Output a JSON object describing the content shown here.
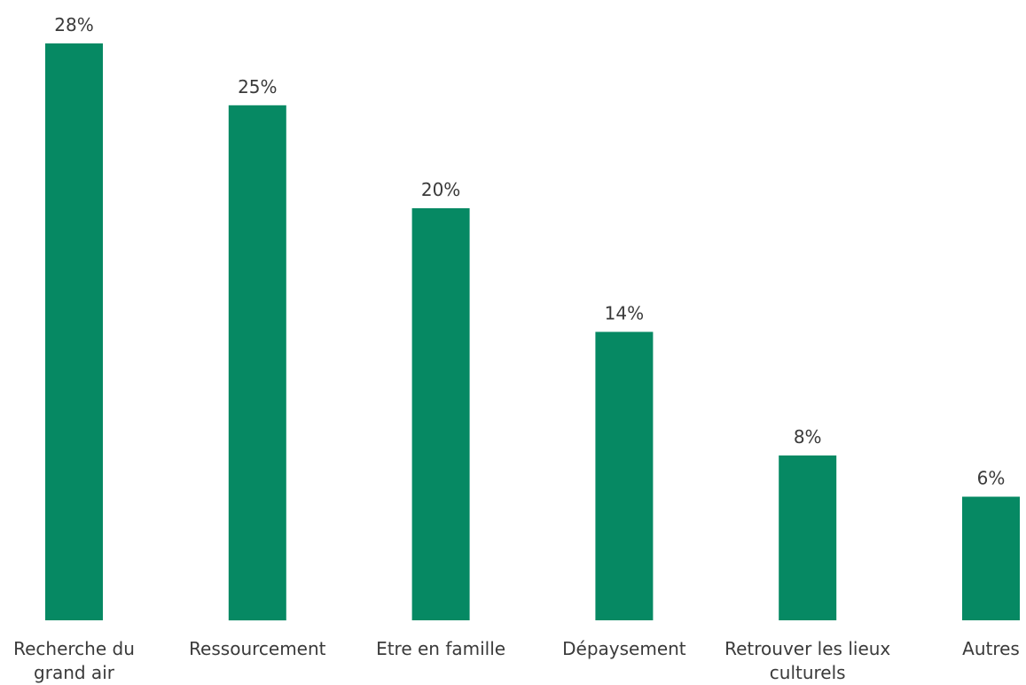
{
  "chart_data": {
    "type": "bar",
    "categories": [
      [
        "Recherche du",
        "grand air"
      ],
      [
        "Ressourcement"
      ],
      [
        "Etre en famille"
      ],
      [
        "Dépaysement"
      ],
      [
        "Retrouver les lieux",
        "culturels"
      ],
      [
        "Autres"
      ]
    ],
    "values": [
      28,
      25,
      20,
      14,
      8,
      6
    ],
    "value_labels": [
      "28%",
      "25%",
      "20%",
      "14%",
      "8%",
      "6%"
    ],
    "ylim": [
      0,
      30
    ],
    "grid": false,
    "bar_color": "#068963"
  }
}
